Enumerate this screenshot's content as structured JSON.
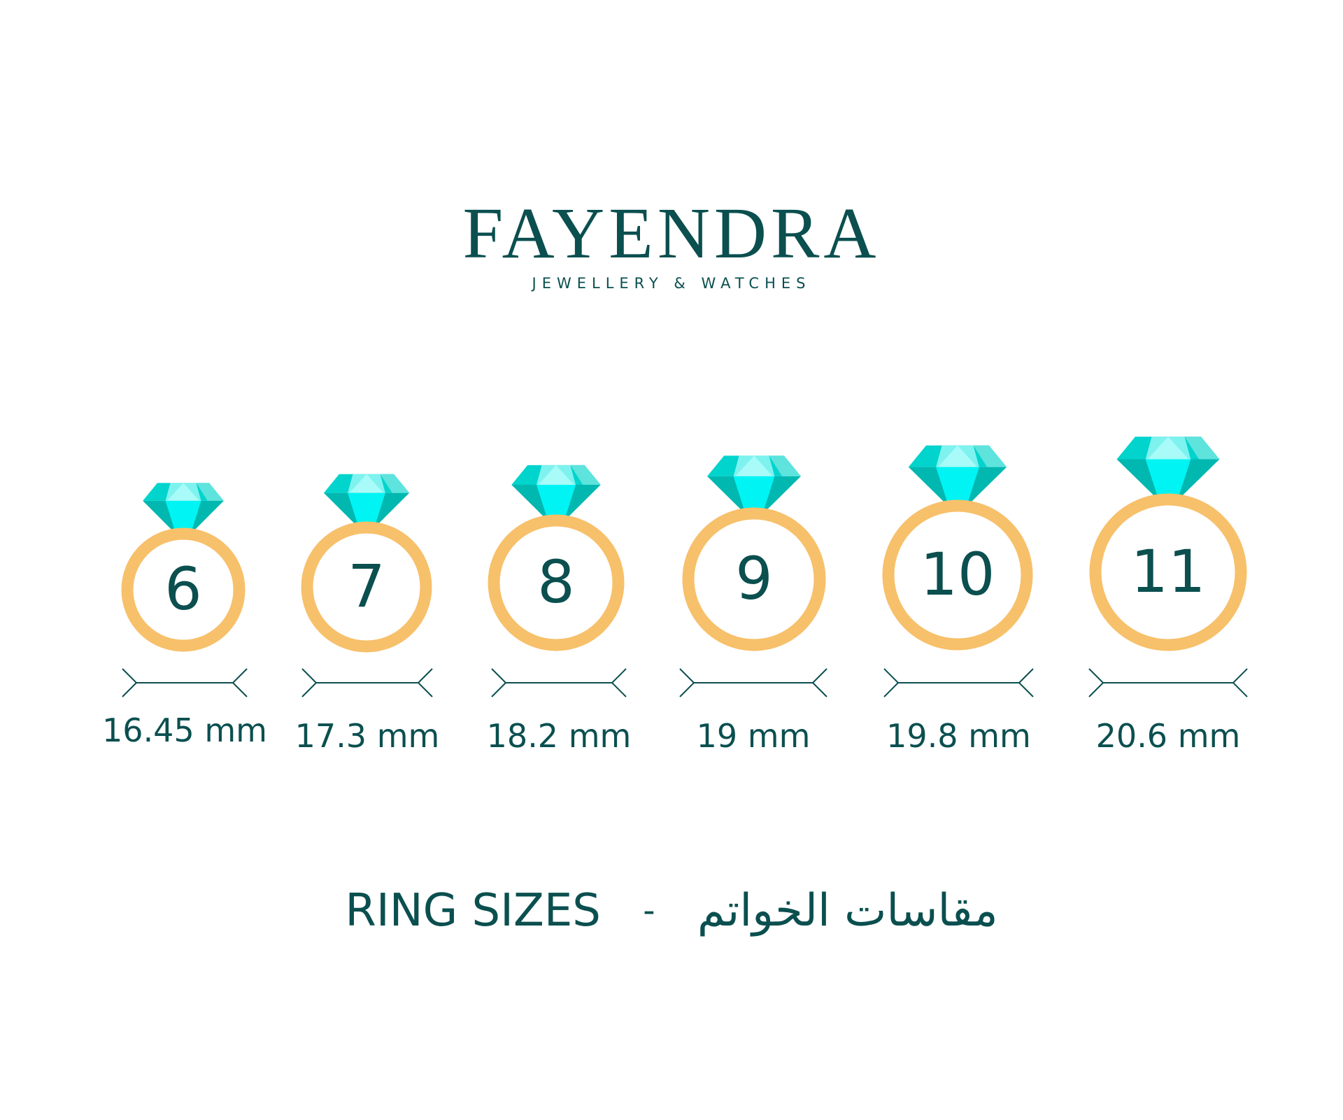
{
  "brand": {
    "name": "FAYENDRA",
    "tagline": "JEWELLERY & WATCHES"
  },
  "colors": {
    "text": "#0b4f4f",
    "band": "#f7c06a",
    "gem_dark": "#00b8b0",
    "gem_mid": "#00d4cc",
    "gem_light": "#7ef2ee",
    "gem_core": "#00f4f4"
  },
  "rings": [
    {
      "size": "6",
      "diameter": "16.45 mm"
    },
    {
      "size": "7",
      "diameter": "17.3 mm"
    },
    {
      "size": "8",
      "diameter": "18.2 mm"
    },
    {
      "size": "9",
      "diameter": "19 mm"
    },
    {
      "size": "10",
      "diameter": "19.8 mm"
    },
    {
      "size": "11",
      "diameter": "20.6 mm"
    }
  ],
  "title": {
    "english": "RING SIZES",
    "separator": "-",
    "arabic": "مقاسات الخواتم"
  }
}
